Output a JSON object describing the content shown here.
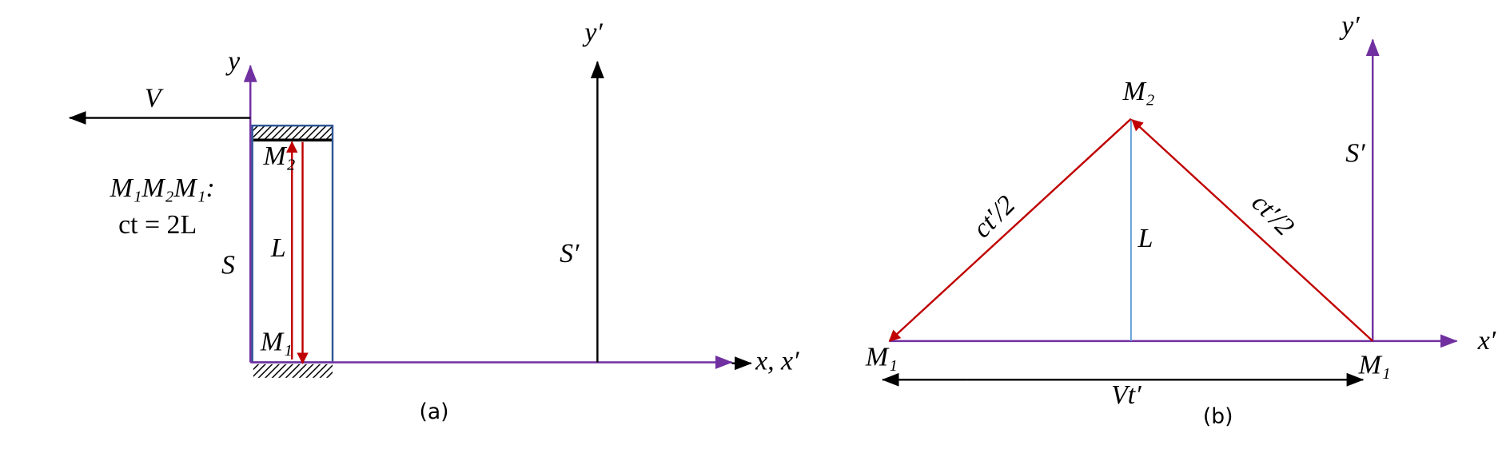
{
  "panel_a": {
    "caption": "(a)",
    "labels": {
      "y": "y",
      "v": "V",
      "path": "M₁M₂M₁:",
      "equation": "ct = 2L",
      "s": "S",
      "m2": "M₂",
      "l": "L",
      "m1": "M₁",
      "s_prime": "S′",
      "y_prime": "y′",
      "x_axis": "x, x′"
    }
  },
  "panel_b": {
    "caption": "(b)",
    "labels": {
      "x_prime": "x′",
      "y_prime": "y′",
      "s_prime": "S′",
      "m2": "M₂",
      "l": "L",
      "left_path": "ct′/2",
      "right_path": "ct′/2",
      "m1_left": "M₁",
      "m1_right": "M₁",
      "distance": "Vt′"
    }
  }
}
